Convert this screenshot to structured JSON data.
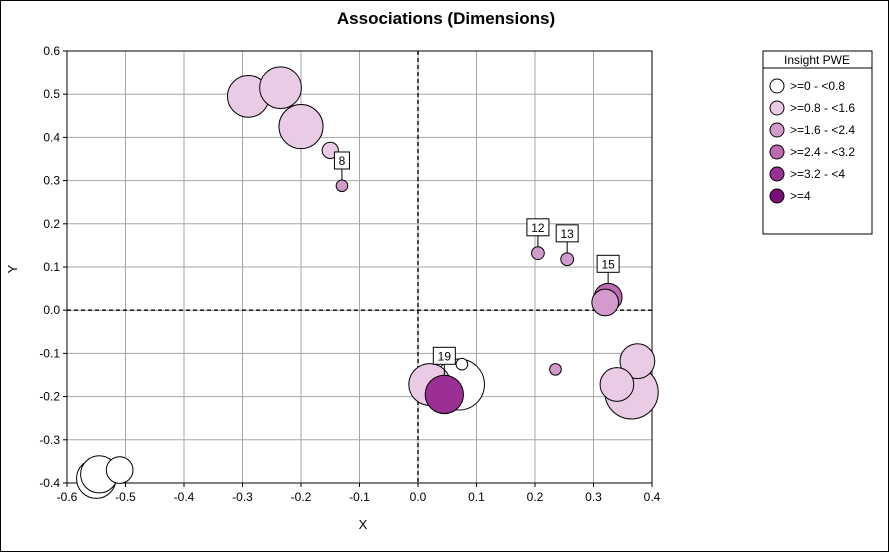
{
  "chart_data": {
    "type": "scatter",
    "title": "Associations (Dimensions)",
    "xlabel": "X",
    "ylabel": "Y",
    "xlim": [
      -0.6,
      0.4
    ],
    "ylim": [
      -0.4,
      0.6
    ],
    "x_ticks": [
      "-0.6",
      "-0.5",
      "-0.4",
      "-0.3",
      "-0.2",
      "-0.1",
      "0.0",
      "0.1",
      "0.2",
      "0.3",
      "0.4"
    ],
    "y_ticks": [
      "0.6",
      "0.5",
      "0.4",
      "0.3",
      "0.2",
      "0.1",
      "0.0",
      "-0.1",
      "-0.2",
      "-0.3",
      "-0.4"
    ],
    "grid": true,
    "legend": {
      "title": "Insight PWE",
      "placement": "right",
      "entries": [
        {
          "label": ">=0 - <0.8",
          "color": "#ffffff"
        },
        {
          "label": ">=0.8 - <1.6",
          "color": "#eacbe6"
        },
        {
          "label": ">=1.6 - <2.4",
          "color": "#d39bcc"
        },
        {
          "label": ">=2.4 - <3.2",
          "color": "#bc6bb3"
        },
        {
          "label": ">=3.2 - <4",
          "color": "#9c2f94"
        },
        {
          "label": ">=4",
          "color": "#7a0d78"
        }
      ]
    },
    "points": [
      {
        "x": -0.55,
        "y": -0.39,
        "size": 3.4,
        "category": 0,
        "label": ""
      },
      {
        "x": -0.545,
        "y": -0.38,
        "size": 3.2,
        "category": 0,
        "label": ""
      },
      {
        "x": -0.51,
        "y": -0.37,
        "size": 2.3,
        "category": 0,
        "label": ""
      },
      {
        "x": -0.29,
        "y": 0.495,
        "size": 3.6,
        "category": 1,
        "label": ""
      },
      {
        "x": -0.235,
        "y": 0.515,
        "size": 3.6,
        "category": 1,
        "label": ""
      },
      {
        "x": -0.2,
        "y": 0.425,
        "size": 3.8,
        "category": 1,
        "label": ""
      },
      {
        "x": -0.15,
        "y": 0.37,
        "size": 1.4,
        "category": 1,
        "label": ""
      },
      {
        "x": -0.13,
        "y": 0.288,
        "size": 1.0,
        "category": 2,
        "label": "8"
      },
      {
        "x": 0.205,
        "y": 0.132,
        "size": 1.1,
        "category": 2,
        "label": "12"
      },
      {
        "x": 0.255,
        "y": 0.118,
        "size": 1.1,
        "category": 2,
        "label": "13"
      },
      {
        "x": 0.325,
        "y": 0.03,
        "size": 2.4,
        "category": 3,
        "label": "15"
      },
      {
        "x": 0.32,
        "y": 0.018,
        "size": 2.3,
        "category": 2,
        "label": ""
      },
      {
        "x": 0.07,
        "y": -0.172,
        "size": 4.4,
        "category": 0,
        "label": ""
      },
      {
        "x": 0.075,
        "y": -0.125,
        "size": 1.0,
        "category": 0,
        "label": ""
      },
      {
        "x": 0.02,
        "y": -0.172,
        "size": 3.6,
        "category": 1,
        "label": ""
      },
      {
        "x": 0.045,
        "y": -0.195,
        "size": 3.3,
        "category": 4,
        "label": "19"
      },
      {
        "x": 0.235,
        "y": -0.137,
        "size": 1.0,
        "category": 2,
        "label": ""
      },
      {
        "x": 0.365,
        "y": -0.19,
        "size": 4.6,
        "category": 1,
        "label": ""
      },
      {
        "x": 0.375,
        "y": -0.118,
        "size": 3.0,
        "category": 1,
        "label": ""
      },
      {
        "x": 0.34,
        "y": -0.172,
        "size": 2.9,
        "category": 1,
        "label": ""
      }
    ]
  }
}
